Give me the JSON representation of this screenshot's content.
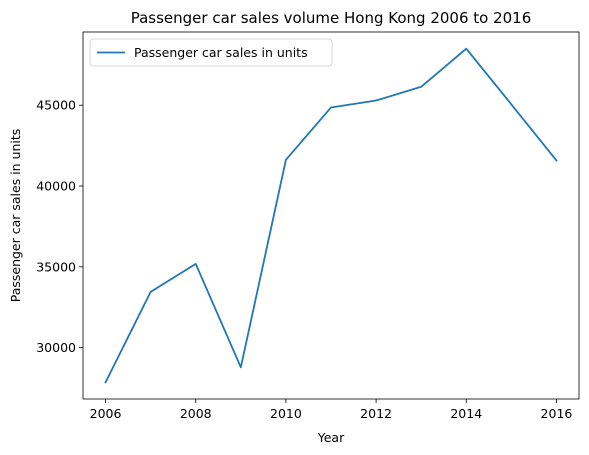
{
  "chart_data": {
    "type": "line",
    "title": "Passenger car sales volume Hong Kong 2006 to 2016",
    "xlabel": "Year",
    "ylabel": "Passenger car sales in units",
    "x": [
      2006,
      2007,
      2008,
      2009,
      2010,
      2011,
      2012,
      2013,
      2014,
      2015,
      2016
    ],
    "series": [
      {
        "name": "Passenger car sales in units",
        "color": "#1f77b4",
        "values": [
          27850,
          33450,
          35180,
          28780,
          41620,
          44860,
          45290,
          46140,
          48500,
          45050,
          41580
        ]
      }
    ],
    "xlim": [
      2005.5,
      2016.5
    ],
    "ylim": [
      26820,
      49530
    ],
    "xticks": [
      2006,
      2008,
      2010,
      2012,
      2014,
      2016
    ],
    "yticks": [
      30000,
      35000,
      40000,
      45000
    ],
    "grid": false,
    "legend_position": "upper left"
  }
}
